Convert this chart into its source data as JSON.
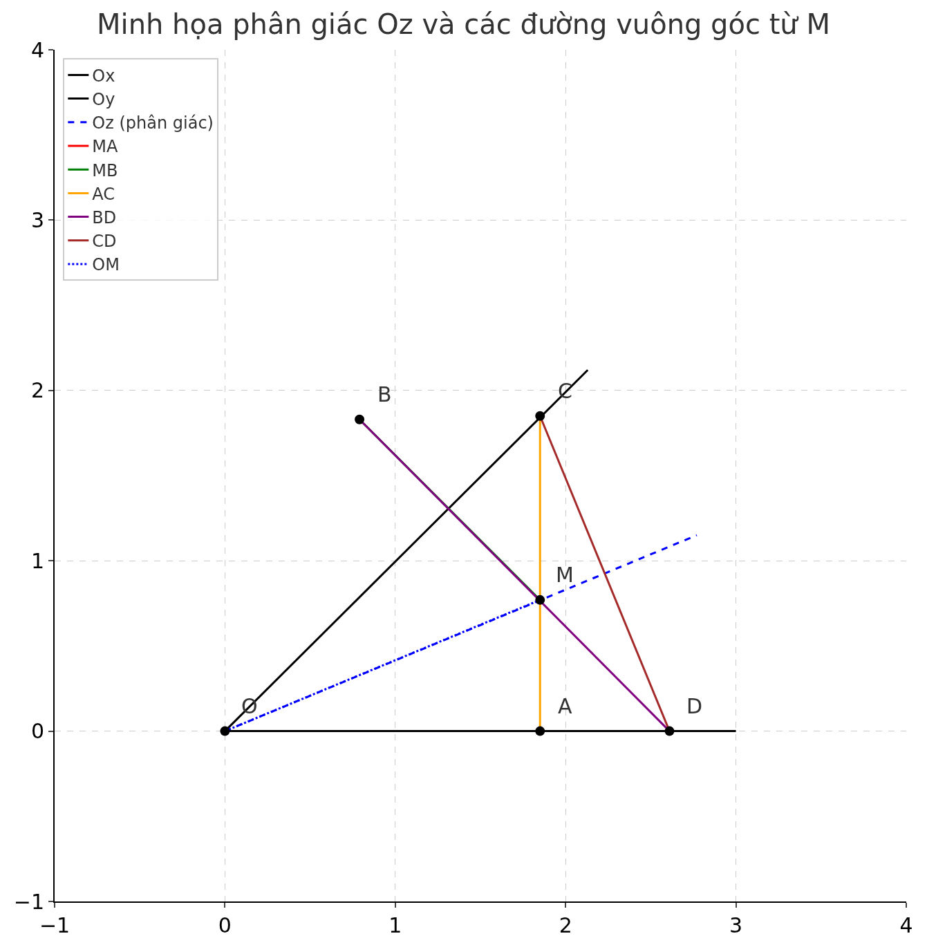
{
  "chart_data": {
    "type": "line",
    "title": "Minh họa phân giác Oz và các đường vuông góc từ M",
    "xlim": [
      -1,
      4
    ],
    "ylim": [
      -1,
      4
    ],
    "xticks": [
      {
        "value": -1,
        "label": "−1"
      },
      0,
      1,
      2,
      3,
      4
    ],
    "yticks": [
      {
        "value": -1,
        "label": "−1"
      },
      0,
      1,
      2,
      3,
      4
    ],
    "grid": true,
    "legend": "top left",
    "series": [
      {
        "name": "Ox",
        "color": "#000000",
        "x": [
          0,
          3
        ],
        "values": [
          0,
          0
        ],
        "line_style": "solid"
      },
      {
        "name": "Oy",
        "color": "#000000",
        "x": [
          0,
          2.13
        ],
        "values": [
          0,
          2.12
        ],
        "line_style": "solid"
      },
      {
        "name": "Oz (phân giác)",
        "color": "#0000ff",
        "x": [
          0,
          2.77
        ],
        "values": [
          0,
          1.15
        ],
        "line_style": "dashed"
      },
      {
        "name": "MA",
        "color": "#ff0000",
        "x": [
          null,
          null
        ],
        "values": [
          null,
          null
        ],
        "line_style": "solid"
      },
      {
        "name": "MB",
        "color": "#008000",
        "x": [
          1.85,
          0.79
        ],
        "values": [
          0.77,
          1.83
        ],
        "line_style": "solid"
      },
      {
        "name": "AC",
        "color": "#ffa500",
        "x": [
          1.85,
          1.85
        ],
        "values": [
          0,
          1.85
        ],
        "line_style": "solid"
      },
      {
        "name": "BD",
        "color": "#800080",
        "x": [
          0.79,
          2.61
        ],
        "values": [
          1.83,
          0
        ],
        "line_style": "solid"
      },
      {
        "name": "CD",
        "color": "#a52a2a",
        "x": [
          1.85,
          2.61
        ],
        "values": [
          1.85,
          0
        ],
        "line_style": "solid"
      },
      {
        "name": "OM",
        "color": "#0000ff",
        "x": [
          0,
          1.85
        ],
        "values": [
          0,
          0.77
        ],
        "line_style": "dotted"
      },
      {
        "type": "scatter",
        "color": "#000000",
        "marker": "circle",
        "x": [
          0,
          1.85,
          0.79,
          1.85,
          2.61,
          1.85
        ],
        "values": [
          0,
          0,
          1.83,
          1.85,
          0,
          0.77
        ]
      }
    ],
    "annotations": [
      {
        "text": "O",
        "x": 0,
        "y": 0
      },
      {
        "text": "A",
        "x": 1.85,
        "y": 0
      },
      {
        "text": "B",
        "x": 0.79,
        "y": 1.83
      },
      {
        "text": "C",
        "x": 1.85,
        "y": 1.85
      },
      {
        "text": "D",
        "x": 2.61,
        "y": 0
      },
      {
        "text": "M",
        "x": 1.85,
        "y": 0.77
      }
    ]
  }
}
